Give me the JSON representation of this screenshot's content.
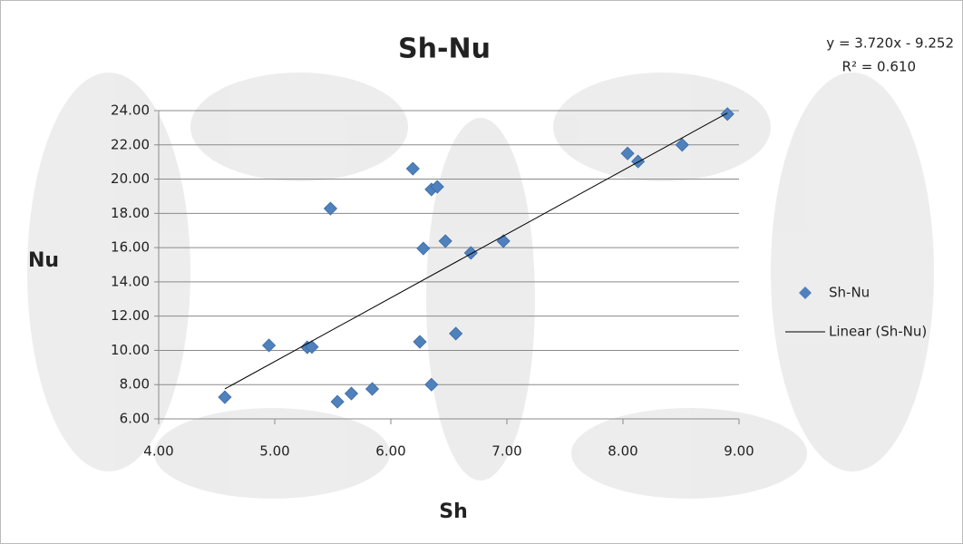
{
  "chart_data": {
    "type": "scatter",
    "title": "Sh-Nu",
    "x_label": "Sh",
    "y_label": "Nu",
    "annotations": [
      "y = 3.720x - 9.252",
      "R² = 0.610"
    ],
    "series": [
      {
        "name": "Sh-Nu",
        "type": "scatter",
        "color": "#4f81bd",
        "x": [
          4.57,
          4.95,
          5.28,
          5.32,
          5.48,
          5.54,
          5.66,
          5.84,
          6.19,
          6.25,
          6.28,
          6.35,
          6.4,
          6.35,
          6.47,
          6.56,
          6.69,
          6.97,
          8.04,
          8.13,
          8.51,
          8.9
        ],
        "values": [
          7.27,
          10.29,
          10.18,
          10.2,
          18.28,
          7.0,
          7.48,
          7.75,
          20.61,
          10.5,
          15.95,
          19.4,
          19.55,
          8.0,
          16.38,
          10.98,
          15.69,
          16.38,
          21.5,
          21.03,
          22.0,
          23.8
        ]
      },
      {
        "name": "Linear (Sh-Nu)",
        "type": "line",
        "color": "#000000",
        "x": [
          4.57,
          8.9
        ],
        "values": [
          7.75,
          23.86
        ]
      }
    ],
    "xlim": [
      4,
      9
    ],
    "ylim": [
      6,
      24
    ],
    "xticks": [
      {
        "value": 4,
        "label": "4.00"
      },
      {
        "value": 5,
        "label": "5.00"
      },
      {
        "value": 6,
        "label": "6.00"
      },
      {
        "value": 7,
        "label": "7.00"
      },
      {
        "value": 8,
        "label": "8.00"
      },
      {
        "value": 9,
        "label": "9.00"
      }
    ],
    "yticks": [
      {
        "value": 6,
        "label": "6.00"
      },
      {
        "value": 8,
        "label": "8.00"
      },
      {
        "value": 10,
        "label": "10.00"
      },
      {
        "value": 12,
        "label": "12.00"
      },
      {
        "value": 14,
        "label": "14.00"
      },
      {
        "value": 16,
        "label": "16.00"
      },
      {
        "value": 18,
        "label": "18.00"
      },
      {
        "value": 20,
        "label": "20.00"
      },
      {
        "value": 22,
        "label": "22.00"
      },
      {
        "value": 24,
        "label": "24.00"
      }
    ],
    "grid": true,
    "legend": "right"
  }
}
